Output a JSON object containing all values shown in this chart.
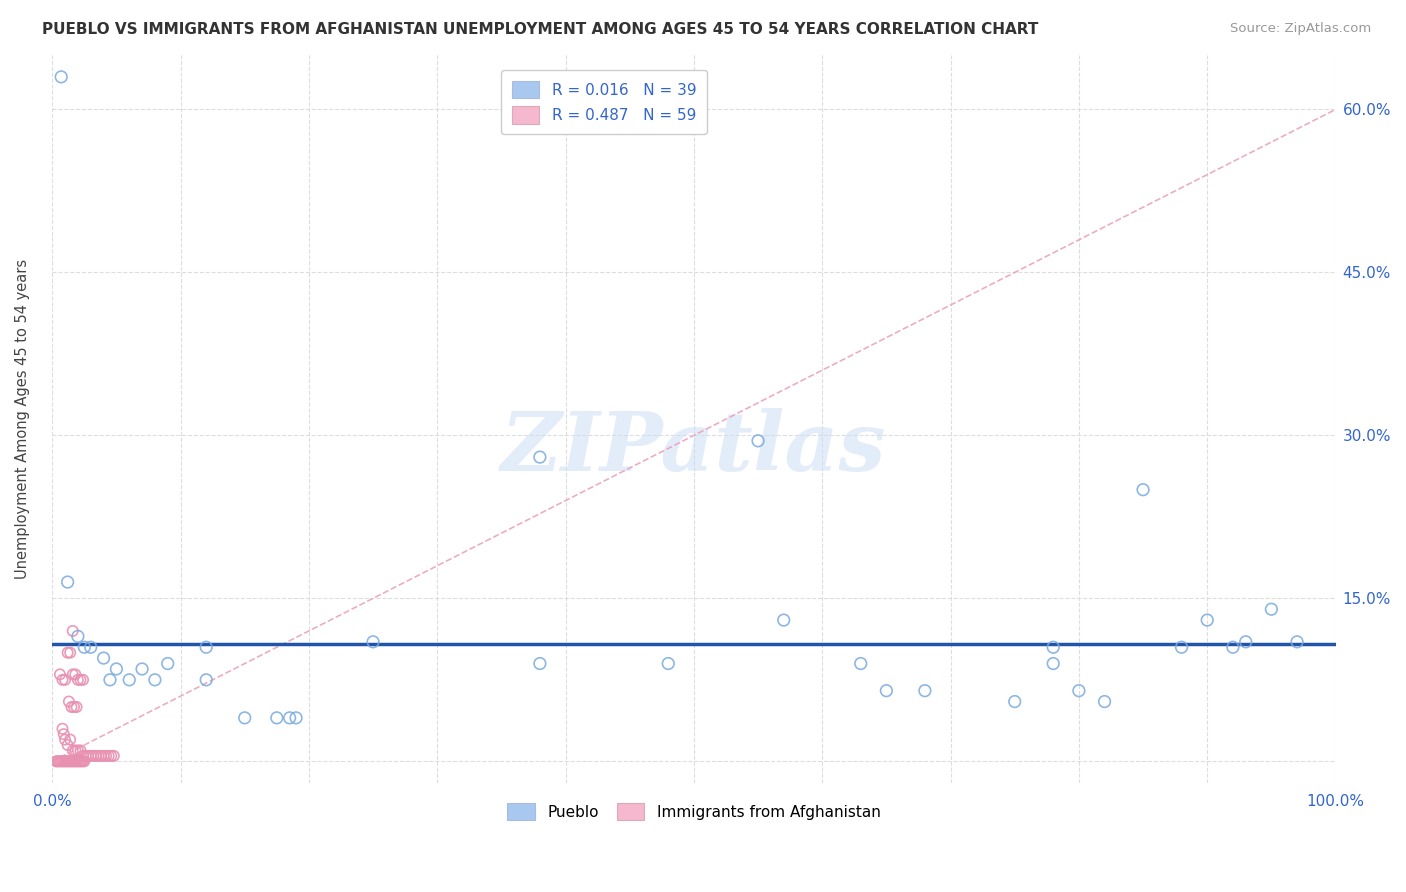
{
  "title": "PUEBLO VS IMMIGRANTS FROM AFGHANISTAN UNEMPLOYMENT AMONG AGES 45 TO 54 YEARS CORRELATION CHART",
  "source": "Source: ZipAtlas.com",
  "ylabel": "Unemployment Among Ages 45 to 54 years",
  "xlim": [
    0.0,
    1.0
  ],
  "ylim": [
    -0.02,
    0.65
  ],
  "x_ticks": [
    0.0,
    0.1,
    0.2,
    0.3,
    0.4,
    0.5,
    0.6,
    0.7,
    0.8,
    0.9,
    1.0
  ],
  "x_tick_labels": [
    "0.0%",
    "",
    "",
    "",
    "",
    "",
    "",
    "",
    "",
    "",
    "100.0%"
  ],
  "y_ticks": [
    0.0,
    0.15,
    0.3,
    0.45,
    0.6
  ],
  "y_tick_labels": [
    "",
    "15.0%",
    "30.0%",
    "45.0%",
    "60.0%"
  ],
  "background_color": "#ffffff",
  "grid_color": "#dddddd",
  "watermark_text": "ZIPatlas",
  "pueblo_color": "#a8c8f0",
  "pueblo_edge_color": "#7aaade",
  "afghanistan_color": "#f5b8ce",
  "afghanistan_edge_color": "#e890b0",
  "pueblo_trend_color": "#2255aa",
  "afghanistan_trend_color": "#e8a0b8",
  "pueblo_scatter": [
    [
      0.007,
      0.63
    ],
    [
      0.012,
      0.165
    ],
    [
      0.02,
      0.115
    ],
    [
      0.025,
      0.105
    ],
    [
      0.03,
      0.105
    ],
    [
      0.04,
      0.095
    ],
    [
      0.045,
      0.075
    ],
    [
      0.05,
      0.085
    ],
    [
      0.06,
      0.075
    ],
    [
      0.07,
      0.085
    ],
    [
      0.08,
      0.075
    ],
    [
      0.09,
      0.09
    ],
    [
      0.12,
      0.105
    ],
    [
      0.12,
      0.075
    ],
    [
      0.15,
      0.04
    ],
    [
      0.175,
      0.04
    ],
    [
      0.185,
      0.04
    ],
    [
      0.19,
      0.04
    ],
    [
      0.25,
      0.11
    ],
    [
      0.38,
      0.28
    ],
    [
      0.38,
      0.09
    ],
    [
      0.48,
      0.09
    ],
    [
      0.55,
      0.295
    ],
    [
      0.57,
      0.13
    ],
    [
      0.63,
      0.09
    ],
    [
      0.65,
      0.065
    ],
    [
      0.68,
      0.065
    ],
    [
      0.75,
      0.055
    ],
    [
      0.78,
      0.105
    ],
    [
      0.78,
      0.09
    ],
    [
      0.8,
      0.065
    ],
    [
      0.82,
      0.055
    ],
    [
      0.85,
      0.25
    ],
    [
      0.88,
      0.105
    ],
    [
      0.9,
      0.13
    ],
    [
      0.92,
      0.105
    ],
    [
      0.93,
      0.11
    ],
    [
      0.95,
      0.14
    ],
    [
      0.97,
      0.11
    ]
  ],
  "afghanistan_scatter": [
    [
      0.003,
      0.0
    ],
    [
      0.004,
      0.0
    ],
    [
      0.005,
      0.0
    ],
    [
      0.006,
      0.0
    ],
    [
      0.007,
      0.0
    ],
    [
      0.008,
      0.0
    ],
    [
      0.009,
      0.0
    ],
    [
      0.01,
      0.0
    ],
    [
      0.011,
      0.0
    ],
    [
      0.012,
      0.0
    ],
    [
      0.013,
      0.0
    ],
    [
      0.014,
      0.0
    ],
    [
      0.015,
      0.0
    ],
    [
      0.016,
      0.0
    ],
    [
      0.017,
      0.0
    ],
    [
      0.018,
      0.0
    ],
    [
      0.019,
      0.0
    ],
    [
      0.02,
      0.0
    ],
    [
      0.021,
      0.0
    ],
    [
      0.022,
      0.0
    ],
    [
      0.023,
      0.0
    ],
    [
      0.024,
      0.0
    ],
    [
      0.025,
      0.0
    ],
    [
      0.006,
      0.08
    ],
    [
      0.008,
      0.075
    ],
    [
      0.01,
      0.075
    ],
    [
      0.012,
      0.1
    ],
    [
      0.014,
      0.1
    ],
    [
      0.016,
      0.12
    ],
    [
      0.016,
      0.08
    ],
    [
      0.018,
      0.08
    ],
    [
      0.02,
      0.075
    ],
    [
      0.022,
      0.075
    ],
    [
      0.024,
      0.075
    ],
    [
      0.013,
      0.055
    ],
    [
      0.015,
      0.05
    ],
    [
      0.017,
      0.05
    ],
    [
      0.019,
      0.05
    ],
    [
      0.008,
      0.03
    ],
    [
      0.009,
      0.025
    ],
    [
      0.01,
      0.02
    ],
    [
      0.012,
      0.015
    ],
    [
      0.014,
      0.02
    ],
    [
      0.016,
      0.01
    ],
    [
      0.018,
      0.01
    ],
    [
      0.02,
      0.01
    ],
    [
      0.022,
      0.01
    ],
    [
      0.024,
      0.005
    ],
    [
      0.026,
      0.005
    ],
    [
      0.028,
      0.005
    ],
    [
      0.03,
      0.005
    ],
    [
      0.032,
      0.005
    ],
    [
      0.034,
      0.005
    ],
    [
      0.036,
      0.005
    ],
    [
      0.038,
      0.005
    ],
    [
      0.04,
      0.005
    ],
    [
      0.042,
      0.005
    ],
    [
      0.044,
      0.005
    ],
    [
      0.046,
      0.005
    ],
    [
      0.048,
      0.005
    ]
  ]
}
